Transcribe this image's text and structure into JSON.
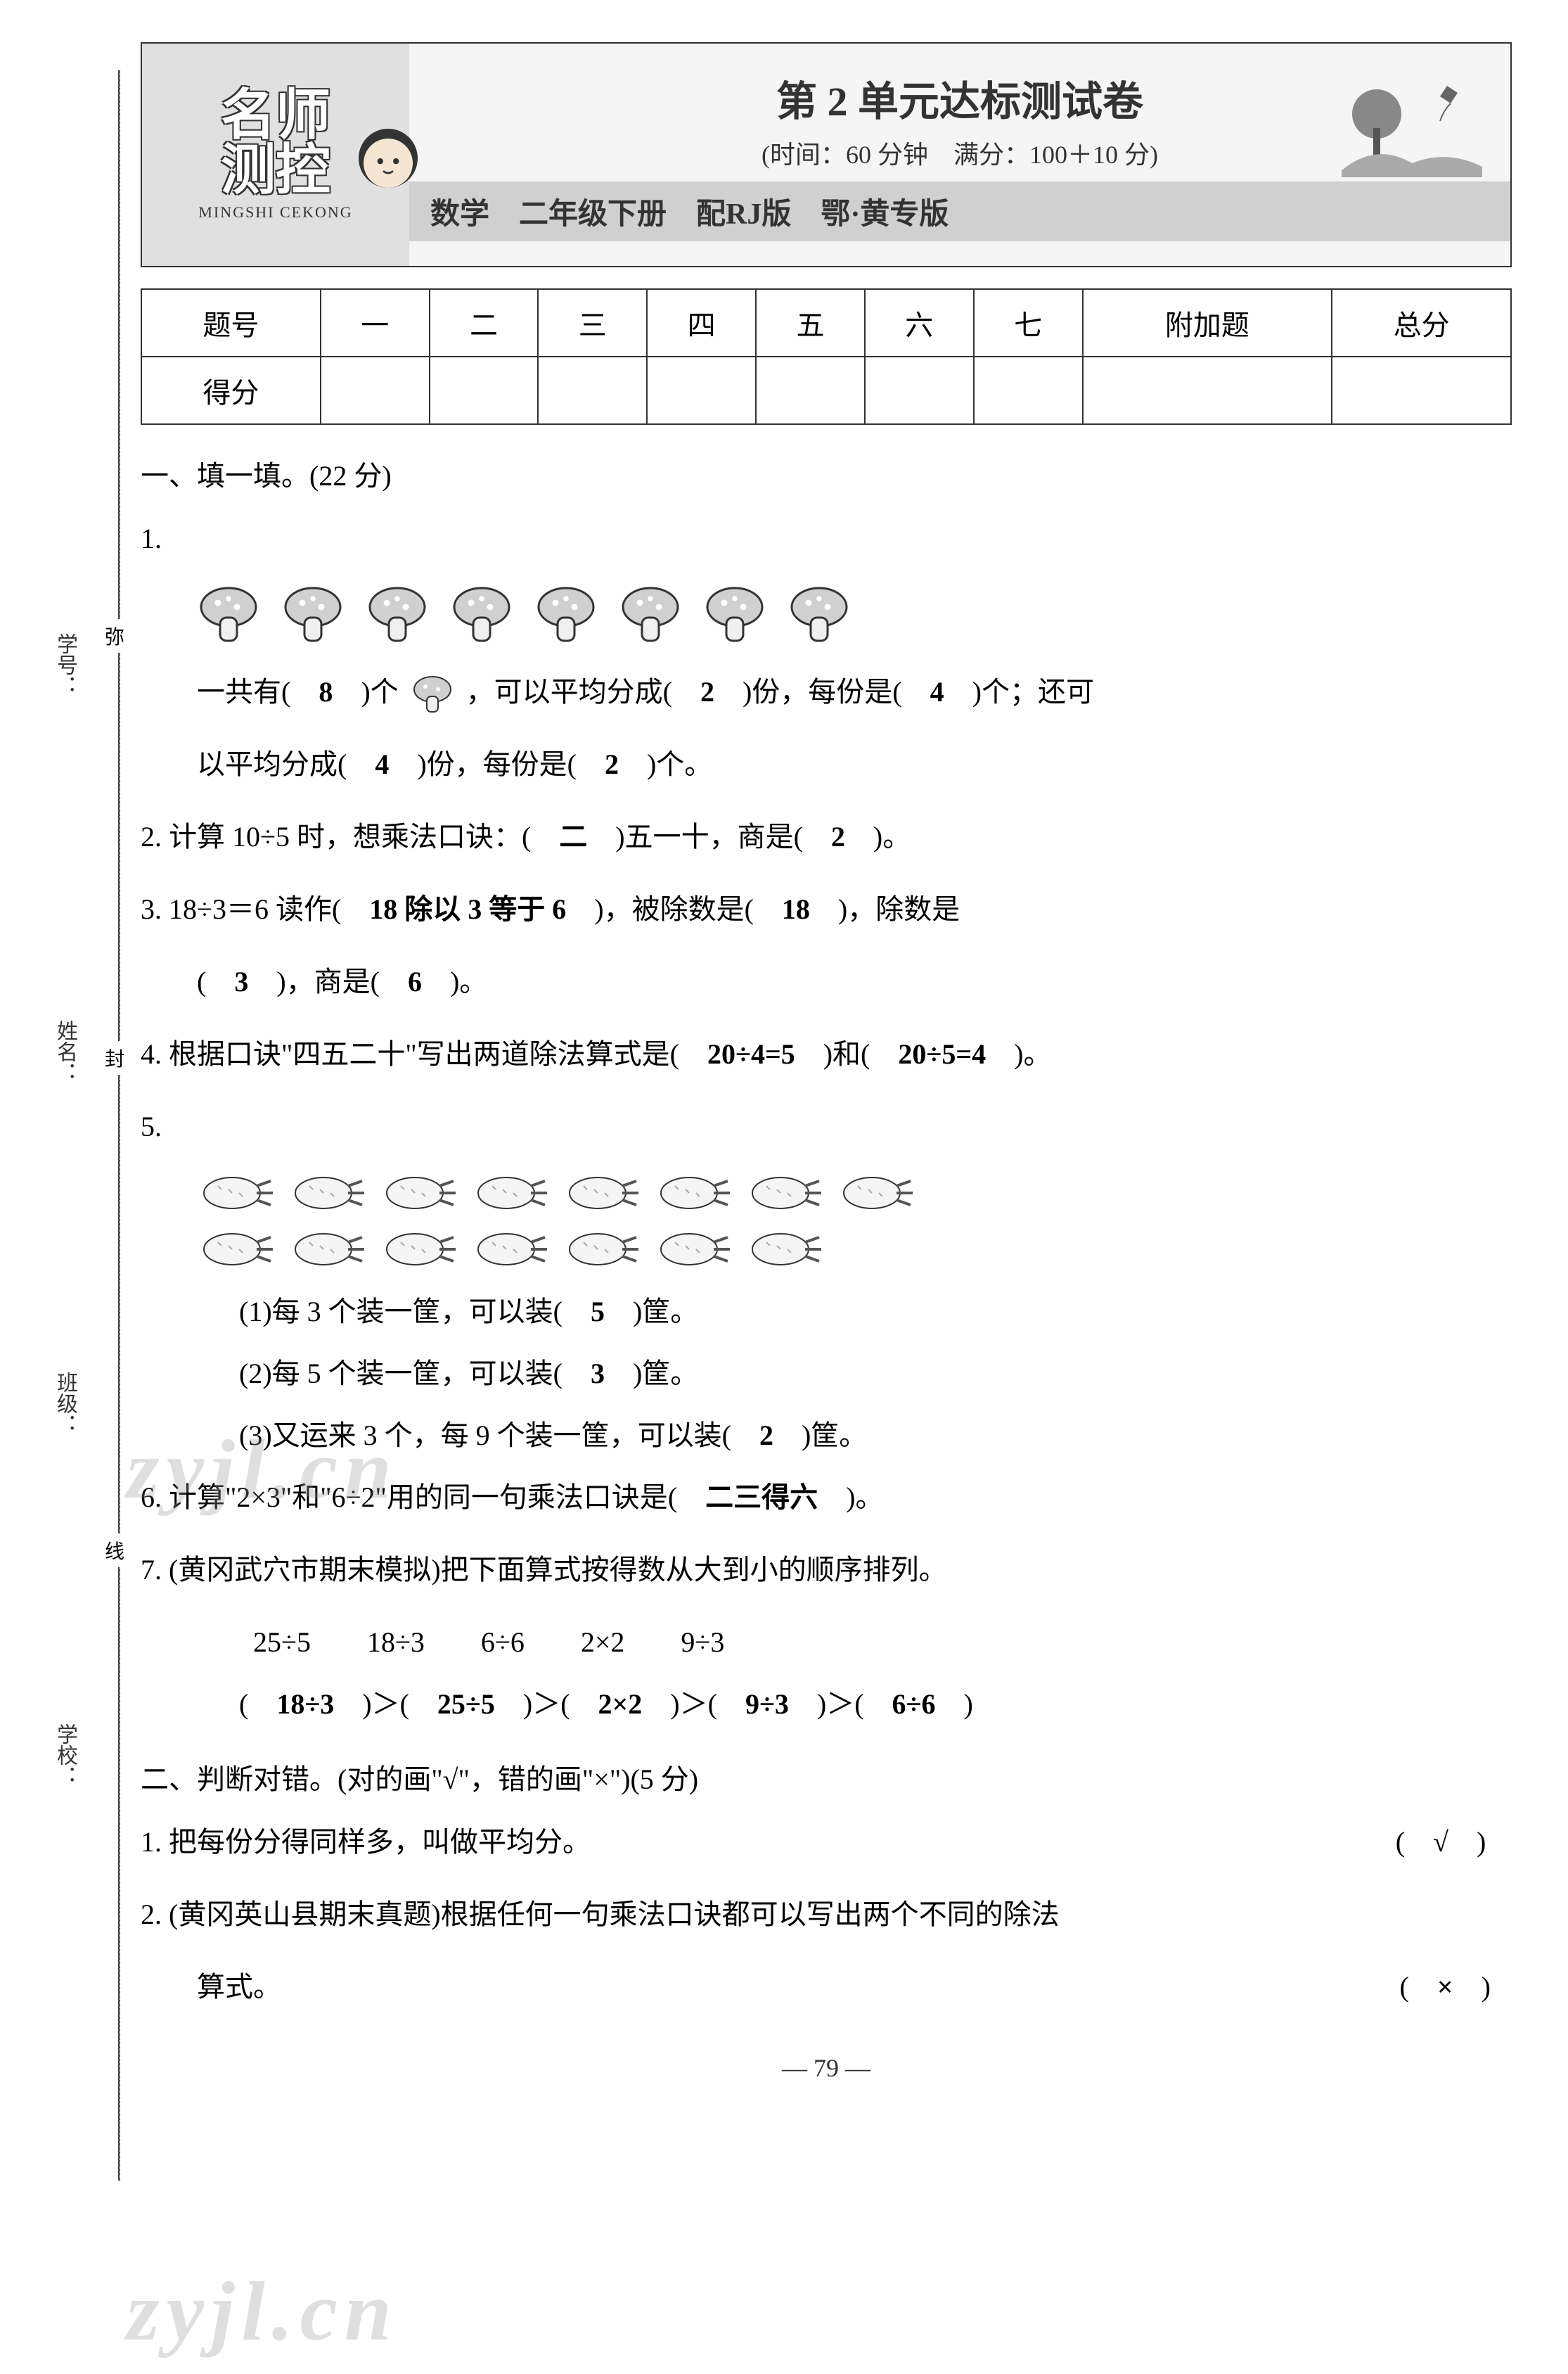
{
  "sidebar": {
    "xuehao": "学号：",
    "xingming": "姓名：",
    "banji": "班级：",
    "xuexiao": "学校：",
    "mi": "弥",
    "feng": "封",
    "xian": "线"
  },
  "header": {
    "logo_line1": "名师",
    "logo_line2": "测控",
    "logo_pinyin": "MINGSHI CEKONG",
    "title": "第 2 单元达标测试卷",
    "subtitle": "(时间：60 分钟　满分：100＋10 分)",
    "subject": "数学",
    "version": "二年级下册　配RJ版　鄂·黄专版"
  },
  "score_table": {
    "headers": [
      "题号",
      "一",
      "二",
      "三",
      "四",
      "五",
      "六",
      "七",
      "附加题",
      "总分"
    ],
    "row_label": "得分"
  },
  "section1": {
    "title": "一、填一填。(22 分)",
    "q1": {
      "num": "1.",
      "mushroom_count": 8,
      "text_part1": "一共有(　",
      "ans1": "8",
      "text_part2": "　)个",
      "text_part3": "，可以平均分成(　",
      "ans2": "2",
      "text_part4": "　)份，每份是(　",
      "ans3": "4",
      "text_part5": "　)个；还可",
      "text_line2_part1": "以平均分成(　",
      "ans4": "4",
      "text_line2_part2": "　)份，每份是(　",
      "ans5": "2",
      "text_line2_part3": "　)个。"
    },
    "q2": {
      "text_part1": "2. 计算 10÷5 时，想乘法口诀：(　",
      "ans1": "二",
      "text_part2": "　)五一十，商是(　",
      "ans2": "2",
      "text_part3": "　)。"
    },
    "q3": {
      "text_part1": "3. 18÷3＝6 读作(　",
      "ans1": "18 除以 3 等于 6",
      "text_part2": "　)，被除数是(　",
      "ans2": "18",
      "text_part3": "　)，除数是",
      "text_line2_part1": "(　",
      "ans3": "3",
      "text_line2_part2": "　)，商是(　",
      "ans4": "6",
      "text_line2_part3": "　)。"
    },
    "q4": {
      "text_part1": "4. 根据口诀\"四五二十\"写出两道除法算式是(　",
      "ans1": "20÷4=5",
      "text_part2": "　)和(　",
      "ans2": "20÷5=4",
      "text_part3": "　)。"
    },
    "q5": {
      "num": "5.",
      "carrot_row1": 8,
      "carrot_row2": 7,
      "sub1_part1": "(1)每 3 个装一筐，可以装(　",
      "sub1_ans": "5",
      "sub1_part2": "　)筐。",
      "sub2_part1": "(2)每 5 个装一筐，可以装(　",
      "sub2_ans": "3",
      "sub2_part2": "　)筐。",
      "sub3_part1": "(3)又运来 3 个，每 9 个装一筐，可以装(　",
      "sub3_ans": "2",
      "sub3_part2": "　)筐。"
    },
    "q6": {
      "text_part1": "6. 计算\"2×3\"和\"6÷2\"用的同一句乘法口诀是(　",
      "ans1": "二三得六",
      "text_part2": "　)。"
    },
    "q7": {
      "text_line1": "7. (黄冈武穴市期末模拟)把下面算式按得数从大到小的顺序排列。",
      "expressions": "25÷5　　18÷3　　6÷6　　2×2　　9÷3",
      "ans_part1": "(　",
      "ans1": "18÷3",
      "ans_part2": "　)＞(　",
      "ans2": "25÷5",
      "ans_part3": "　)＞(　",
      "ans3": "2×2",
      "ans_part4": "　)＞(　",
      "ans4": "9÷3",
      "ans_part5": "　)＞(　",
      "ans5": "6÷6",
      "ans_part6": "　)"
    }
  },
  "section2": {
    "title": "二、判断对错。(对的画\"√\"，错的画\"×\")(5 分)",
    "q1": {
      "text": "1. 把每份分得同样多，叫做平均分。",
      "mark": "√"
    },
    "q2": {
      "text_line1": "2. (黄冈英山县期末真题)根据任何一句乘法口诀都可以写出两个不同的除法",
      "text_line2": "算式。",
      "mark": "×"
    }
  },
  "page_number": "— 79 —",
  "watermark": "zyjl.cn",
  "colors": {
    "text": "#333333",
    "border": "#333333",
    "header_bg": "#f5f5f5",
    "logo_bg": "#e0e0e0",
    "version_bg": "#d0d0d0"
  }
}
